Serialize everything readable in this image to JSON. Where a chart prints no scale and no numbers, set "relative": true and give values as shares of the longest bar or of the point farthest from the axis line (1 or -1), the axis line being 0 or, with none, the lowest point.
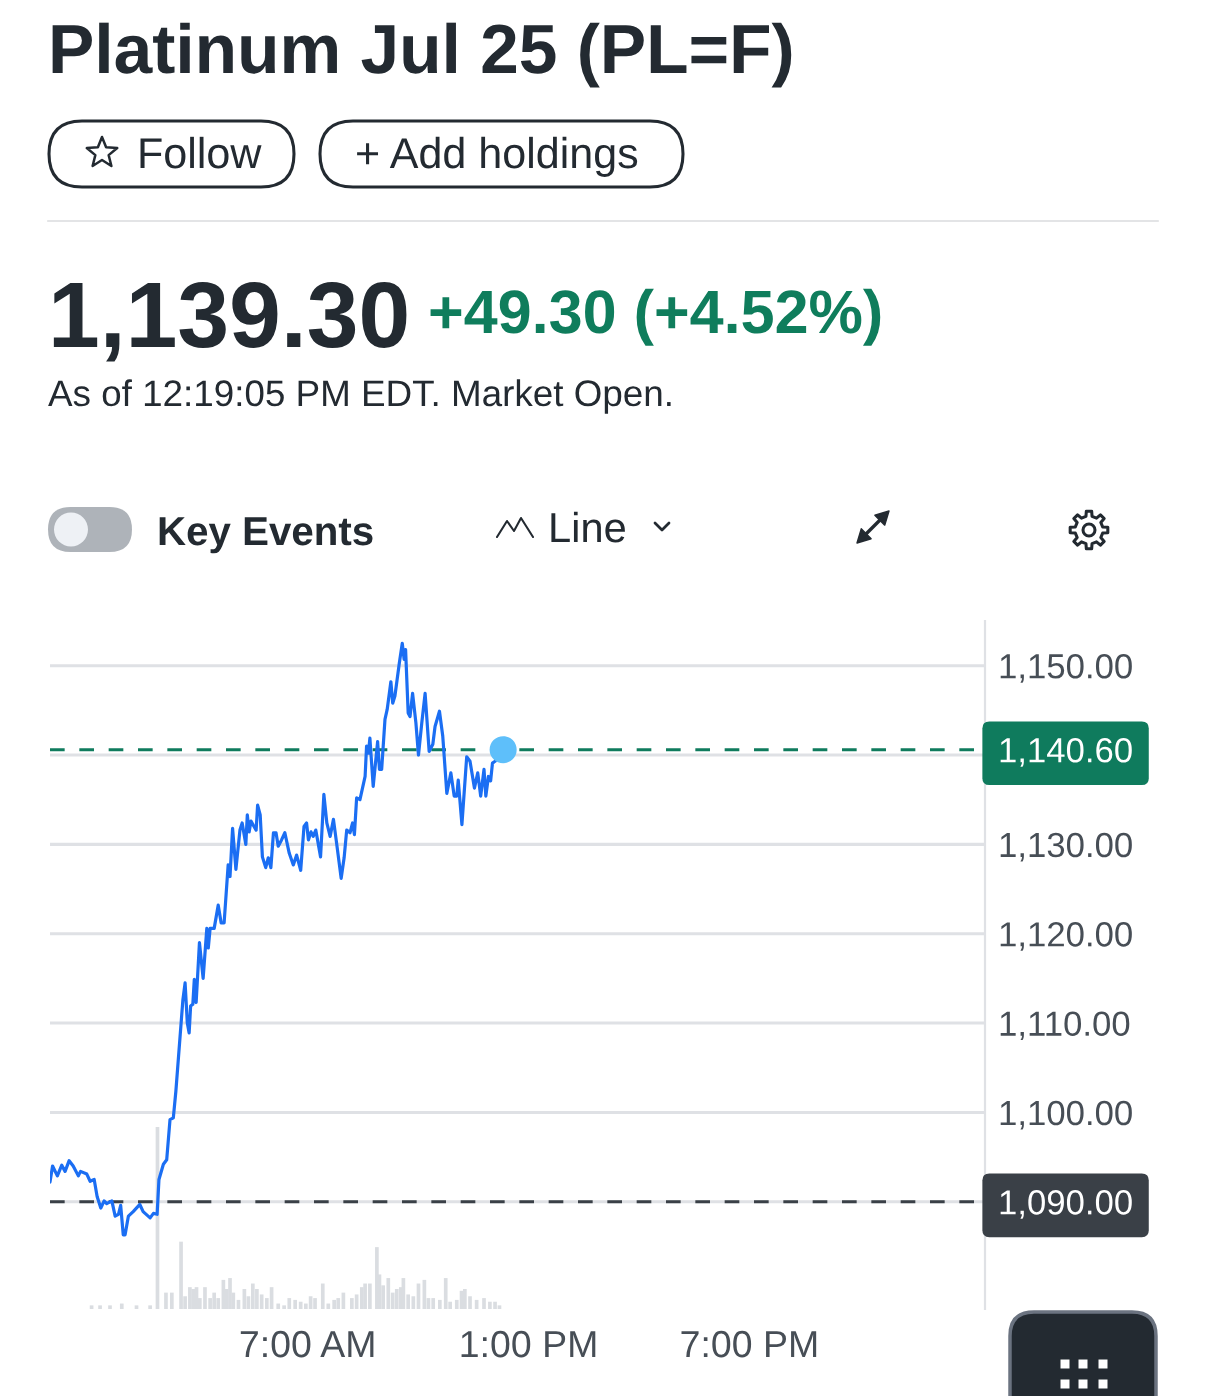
{
  "chart_data": [
    {
      "type": "line",
      "title": "Platinum Jul 25 (PL=F)",
      "annotations": [
        "1,139.30",
        "+49.30 (+4.52%)",
        "As of 12:19:05 PM EDT. Market Open.",
        "Follow",
        "+ Add holdings",
        "Key Events",
        "Line"
      ],
      "series": [
        {
          "type": "line",
          "color": "#1b6ef3",
          "line_style": "solid",
          "x": [
            0,
            0.07,
            0.2,
            0.32,
            0.41,
            0.52,
            0.63,
            0.77,
            0.83,
            1.0,
            1.09,
            1.2,
            1.28,
            1.38,
            1.47,
            1.54,
            1.68,
            1.77,
            1.86,
            1.92,
            1.99,
            2.04,
            2.13,
            2.26,
            2.44,
            2.53,
            2.72,
            2.81,
            2.91,
            2.96,
            3.08,
            3.17,
            3.26,
            3.35,
            3.42,
            3.61,
            3.67,
            3.73,
            3.78,
            3.82,
            3.88,
            3.92,
            3.97,
            4.06,
            4.16,
            4.26,
            4.3,
            4.35,
            4.46,
            4.57,
            4.65,
            4.73,
            4.84,
            4.89,
            4.96,
            5.05,
            5.16,
            5.22,
            5.32,
            5.36,
            5.41,
            5.46,
            5.6,
            5.64,
            5.71,
            5.77,
            5.86,
            5.93,
            6.0,
            6.07,
            6.14,
            6.2,
            6.29,
            6.38,
            6.5,
            6.61,
            6.7,
            6.81,
            6.9,
            6.97,
            7.02,
            7.09,
            7.15,
            7.22,
            7.35,
            7.44,
            7.52,
            7.61,
            7.7,
            7.79,
            7.91,
            7.99,
            8.06,
            8.15,
            8.22,
            8.27,
            8.33,
            8.42,
            8.56,
            8.6,
            8.65,
            8.69,
            8.78,
            8.9,
            8.95,
            9.01,
            9.1,
            9.16,
            9.26,
            9.31,
            9.37,
            9.49,
            9.57,
            9.62,
            9.66,
            9.73,
            9.78,
            9.85,
            9.94,
            10.01,
            10.1,
            10.19,
            10.3,
            10.4,
            10.46,
            10.58,
            10.67,
            10.78,
            10.89,
            10.98,
            11.05,
            11.09,
            11.19,
            11.32,
            11.41,
            11.53,
            11.62,
            11.7,
            11.79,
            11.84,
            11.91,
            11.97,
            12.02,
            12.09,
            12.31
          ],
          "values": [
            1092.2,
            1094.0,
            1092.9,
            1094.1,
            1093.4,
            1094.6,
            1094.0,
            1092.9,
            1093.4,
            1093.1,
            1092.3,
            1092.5,
            1090.6,
            1089.3,
            1090.1,
            1089.8,
            1090.1,
            1088.4,
            1088.6,
            1089.6,
            1086.3,
            1086.3,
            1088.4,
            1088.9,
            1089.7,
            1088.9,
            1088.2,
            1088.7,
            1088.6,
            1092.5,
            1094.2,
            1094.7,
            1099.2,
            1099.4,
            1102.4,
            1112.6,
            1114.5,
            1110.0,
            1108.9,
            1111.9,
            1112.1,
            1114.9,
            1112.3,
            1119.0,
            1115.0,
            1120.6,
            1118.4,
            1120.6,
            1120.6,
            1123.2,
            1121.2,
            1121.2,
            1127.7,
            1126.4,
            1131.8,
            1127.2,
            1131.6,
            1132.4,
            1130.0,
            1133.3,
            1131.4,
            1132.6,
            1131.6,
            1134.4,
            1133.3,
            1128.6,
            1127.4,
            1128.5,
            1127.4,
            1131.3,
            1131.3,
            1129.8,
            1130.5,
            1131.3,
            1129.0,
            1127.7,
            1128.8,
            1127.1,
            1132.0,
            1132.4,
            1130.5,
            1131.4,
            1130.9,
            1131.6,
            1128.6,
            1135.6,
            1132.4,
            1130.9,
            1132.8,
            1130.0,
            1126.2,
            1128.5,
            1131.6,
            1131.3,
            1132.4,
            1131.1,
            1135.2,
            1135.0,
            1137.6,
            1141.0,
            1140.2,
            1141.9,
            1136.5,
            1141.5,
            1138.4,
            1138.4,
            1144.0,
            1145.1,
            1148.2,
            1145.8,
            1146.6,
            1150.3,
            1152.5,
            1150.7,
            1151.8,
            1144.7,
            1144.3,
            1146.9,
            1143.6,
            1140.0,
            1143.6,
            1146.9,
            1140.4,
            1141.2,
            1143.2,
            1144.9,
            1142.1,
            1135.7,
            1138.0,
            1135.4,
            1135.4,
            1137.2,
            1132.2,
            1139.8,
            1139.3,
            1136.3,
            1138.0,
            1135.4,
            1138.4,
            1135.4,
            1137.6,
            1137.1,
            1139.1,
            1139.3,
            1140.6
          ]
        },
        {
          "type": "scatter",
          "color": "#5ebffa",
          "marker": "circle",
          "x": [
            12.31
          ],
          "values": [
            1140.6
          ]
        }
      ],
      "xlim": [
        0,
        25.4
      ],
      "xticks": [
        {
          "value": 7,
          "label": "7:00 AM"
        },
        {
          "value": 13,
          "label": "1:00 PM"
        },
        {
          "value": 19,
          "label": "7:00 PM"
        }
      ],
      "ylim": [
        1078,
        1155
      ],
      "yticks": [
        {
          "value": 1090,
          "label": null
        },
        {
          "value": 1100,
          "label": "1,100.00"
        },
        {
          "value": 1110,
          "label": "1,110.00"
        },
        {
          "value": 1120,
          "label": "1,120.00"
        },
        {
          "value": 1130,
          "label": "1,130.00"
        },
        {
          "value": 1140,
          "label": null
        },
        {
          "value": 1150,
          "label": "1,150.00"
        }
      ],
      "grid": "y",
      "ref_lines": [
        {
          "axis": "y",
          "value": 1140.6,
          "label": "1,140.60",
          "color": "#0f7b5d",
          "line_style": "dashed"
        },
        {
          "axis": "y",
          "value": 1090,
          "label": "1,090.00",
          "color": "#3a4047",
          "line_style": "dashed"
        }
      ]
    },
    {
      "type": "bar",
      "relative": true,
      "color": "#dadde1",
      "xlim": [
        0,
        25.4
      ],
      "x": [
        1.13,
        1.36,
        1.63,
        1.95,
        2.35,
        2.72,
        2.92,
        3.15,
        3.31,
        3.56,
        3.67,
        3.8,
        3.89,
        3.98,
        4.07,
        4.21,
        4.35,
        4.46,
        4.57,
        4.71,
        4.8,
        4.89,
        4.98,
        5.12,
        5.28,
        5.39,
        5.51,
        5.62,
        5.75,
        5.89,
        6.02,
        6.2,
        6.36,
        6.5,
        6.66,
        6.81,
        6.95,
        7.08,
        7.2,
        7.41,
        7.56,
        7.72,
        7.83,
        7.97,
        8.2,
        8.33,
        8.47,
        8.56,
        8.69,
        8.88,
        8.95,
        9.05,
        9.19,
        9.31,
        9.42,
        9.53,
        9.6,
        9.73,
        9.87,
        10.01,
        10.17,
        10.28,
        10.41,
        10.59,
        10.75,
        10.87,
        11.05,
        11.18,
        11.27,
        11.41,
        11.59,
        11.79,
        11.95,
        12.09,
        12.21
      ],
      "values": [
        0.02,
        0.02,
        0.02,
        0.03,
        0.02,
        0.02,
        1,
        0.09,
        0.09,
        0.37,
        0.07,
        0.12,
        0.11,
        0.12,
        0.06,
        0.12,
        0.06,
        0.09,
        0.06,
        0.16,
        0.11,
        0.17,
        0.09,
        0.05,
        0.11,
        0.07,
        0.14,
        0.11,
        0.08,
        0.06,
        0.12,
        0.03,
        0.02,
        0.06,
        0.05,
        0.04,
        0.03,
        0.07,
        0.06,
        0.14,
        0.03,
        0.05,
        0.06,
        0.09,
        0.06,
        0.08,
        0.12,
        0.14,
        0.14,
        0.34,
        0.19,
        0.13,
        0.17,
        0.09,
        0.11,
        0.12,
        0.17,
        0.08,
        0.07,
        0.14,
        0.16,
        0.06,
        0.06,
        0.05,
        0.17,
        0.04,
        0.05,
        0.1,
        0.11,
        0.07,
        0.05,
        0.06,
        0.04,
        0.04,
        0.02
      ]
    }
  ]
}
